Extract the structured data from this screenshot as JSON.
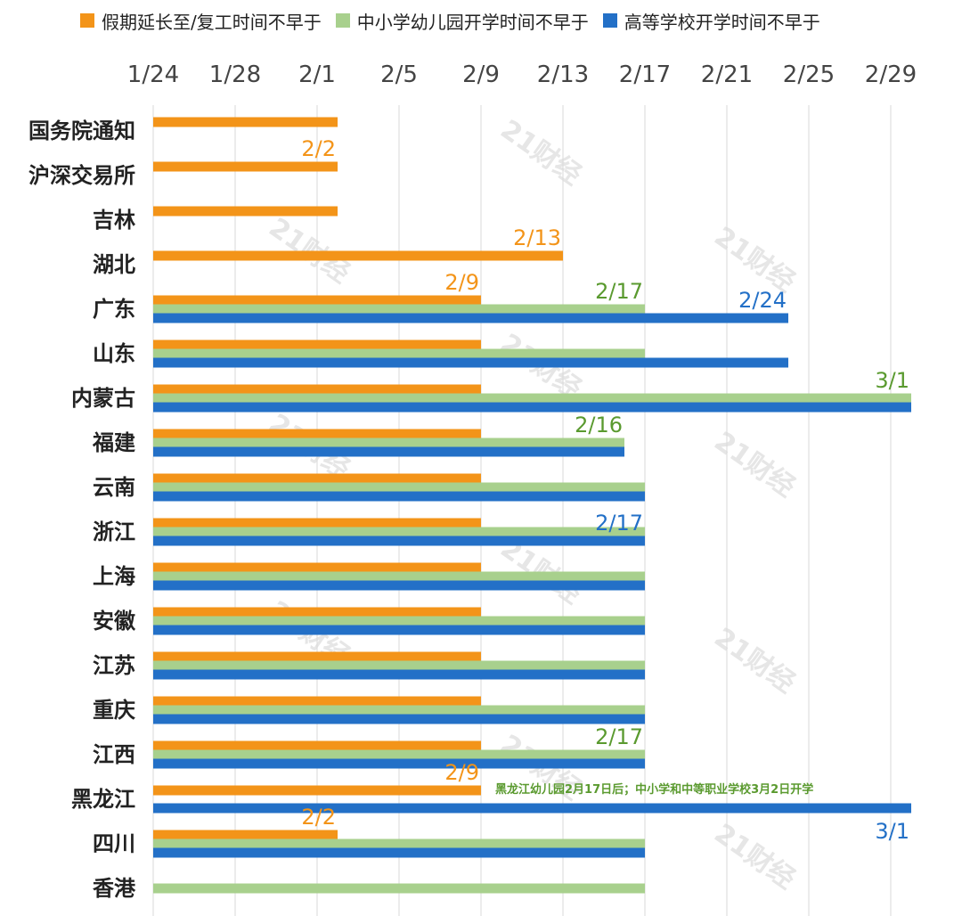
{
  "chart_data": {
    "type": "bar",
    "orientation": "horizontal",
    "legend": [
      {
        "key": "holiday",
        "label": "假期延长至/复工时间不早于",
        "color": "#f39419"
      },
      {
        "key": "school",
        "label": "中小学幼儿园开学时间不早于",
        "color": "#a8d08d"
      },
      {
        "key": "college",
        "label": "高等学校开学时间不早于",
        "color": "#2370c7"
      }
    ],
    "x_axis": {
      "ticks": [
        "1/24",
        "1/28",
        "2/1",
        "2/5",
        "2/9",
        "2/13",
        "2/17",
        "2/21",
        "2/25",
        "2/29"
      ],
      "start": "1/24",
      "range_days": [
        0,
        37
      ],
      "grid": true
    },
    "categories": [
      "国务院通知",
      "沪深交易所",
      "吉林",
      "湖北",
      "广东",
      "山东",
      "内蒙古",
      "福建",
      "云南",
      "浙江",
      "上海",
      "安徽",
      "江苏",
      "重庆",
      "江西",
      "黑龙江",
      "四川",
      "香港"
    ],
    "series": [
      {
        "name": "假期延长至/复工时间不早于",
        "key": "holiday",
        "values": [
          "2/2",
          "2/2",
          "2/2",
          "2/13",
          "2/9",
          "2/9",
          "2/9",
          "2/9",
          "2/9",
          "2/9",
          "2/9",
          "2/9",
          "2/9",
          "2/9",
          "2/9",
          "2/9",
          "2/2",
          null
        ]
      },
      {
        "name": "中小学幼儿园开学时间不早于",
        "key": "school",
        "values": [
          null,
          null,
          null,
          null,
          "2/17",
          "2/17",
          "3/1",
          "2/16",
          "2/17",
          "2/17",
          "2/17",
          "2/17",
          "2/17",
          "2/17",
          "2/17",
          null,
          "2/17",
          "2/17"
        ]
      },
      {
        "name": "高等学校开学时间不早于",
        "key": "college",
        "values": [
          null,
          null,
          null,
          null,
          "2/24",
          "2/24",
          "3/1",
          "2/16",
          "2/17",
          "2/17",
          "2/17",
          "2/17",
          "2/17",
          "2/17",
          "2/17",
          "3/1",
          "2/17",
          null
        ]
      }
    ],
    "data_labels": [
      {
        "category_index": 1,
        "series": "holiday",
        "text": "2/2",
        "color": "#f39419",
        "anchor": "above"
      },
      {
        "category_index": 3,
        "series": "holiday",
        "text": "2/13",
        "color": "#f39419",
        "anchor": "above"
      },
      {
        "category_index": 4,
        "series": "holiday",
        "text": "2/9",
        "color": "#f39419",
        "anchor": "above"
      },
      {
        "category_index": 4,
        "series": "school",
        "text": "2/17",
        "color": "#5a9a2f",
        "anchor": "above"
      },
      {
        "category_index": 4,
        "series": "college",
        "text": "2/24",
        "color": "#2370c7",
        "anchor": "above"
      },
      {
        "category_index": 6,
        "series": "school",
        "text": "3/1",
        "color": "#5a9a2f",
        "anchor": "above"
      },
      {
        "category_index": 7,
        "series": "school",
        "text": "2/16",
        "color": "#5a9a2f",
        "anchor": "above"
      },
      {
        "category_index": 9,
        "series": "college",
        "text": "2/17",
        "color": "#2370c7",
        "anchor": "above"
      },
      {
        "category_index": 14,
        "series": "school",
        "text": "2/17",
        "color": "#5a9a2f",
        "anchor": "above"
      },
      {
        "category_index": 15,
        "series": "holiday",
        "text": "2/9",
        "color": "#f39419",
        "anchor": "above"
      },
      {
        "category_index": 15,
        "series": "college",
        "text": "3/1",
        "color": "#2370c7",
        "anchor": "below"
      },
      {
        "category_index": 16,
        "series": "holiday",
        "text": "2/2",
        "color": "#f39419",
        "anchor": "above"
      }
    ],
    "annotations": [
      {
        "category_index": 15,
        "text": "黑龙江幼儿园2月17日后；中小学和中等职业学校3月2日开学",
        "color": "#5a9a2f"
      }
    ],
    "watermark": "21财经"
  }
}
